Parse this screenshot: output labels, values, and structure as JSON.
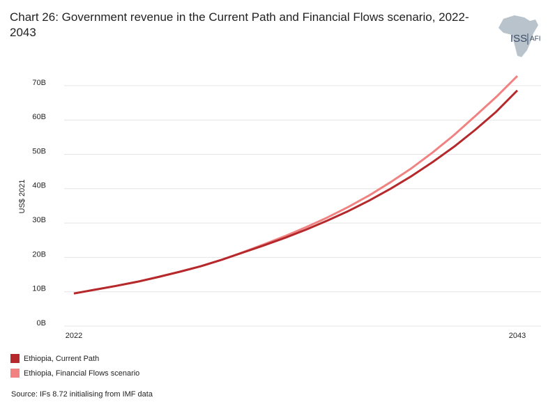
{
  "chart_data": {
    "type": "line",
    "title": "Chart 26: Government revenue in the Current Path and Financial Flows scenario, 2022-2043",
    "y_label": "US$ 2021",
    "source": "Source: IFs 8.72 initialising from IMF data",
    "logo": {
      "left": "ISS",
      "right": "AFI"
    },
    "x": [
      2022,
      2023,
      2024,
      2025,
      2026,
      2027,
      2028,
      2029,
      2030,
      2031,
      2032,
      2033,
      2034,
      2035,
      2036,
      2037,
      2038,
      2039,
      2040,
      2041,
      2042,
      2043
    ],
    "xlim": [
      2022,
      2043
    ],
    "xticks": [
      2022,
      2043
    ],
    "ylim": [
      0,
      75
    ],
    "yticks": [
      {
        "value": 0,
        "label": "0B"
      },
      {
        "value": 10,
        "label": "10B"
      },
      {
        "value": 20,
        "label": "20B"
      },
      {
        "value": 30,
        "label": "30B"
      },
      {
        "value": 40,
        "label": "40B"
      },
      {
        "value": 50,
        "label": "50B"
      },
      {
        "value": 60,
        "label": "60B"
      },
      {
        "value": 70,
        "label": "70B"
      }
    ],
    "grid": true,
    "legend": "bottom-left",
    "series": [
      {
        "name": "Ethiopia, Current Path",
        "color": "#b5282b",
        "values": [
          9.5,
          10.6,
          11.7,
          12.9,
          14.3,
          15.8,
          17.4,
          19.3,
          21.4,
          23.5,
          25.7,
          28.1,
          30.7,
          33.5,
          36.6,
          40.0,
          43.7,
          47.8,
          52.2,
          57.1,
          62.4,
          68.6
        ]
      },
      {
        "name": "Ethiopia, Financial Flows scenario",
        "color": "#f08282",
        "values": [
          9.5,
          10.6,
          11.7,
          12.9,
          14.3,
          15.8,
          17.4,
          19.3,
          21.5,
          23.8,
          26.2,
          28.8,
          31.6,
          34.7,
          38.1,
          41.9,
          46.0,
          50.6,
          55.6,
          61.1,
          66.7,
          72.8
        ]
      }
    ]
  }
}
